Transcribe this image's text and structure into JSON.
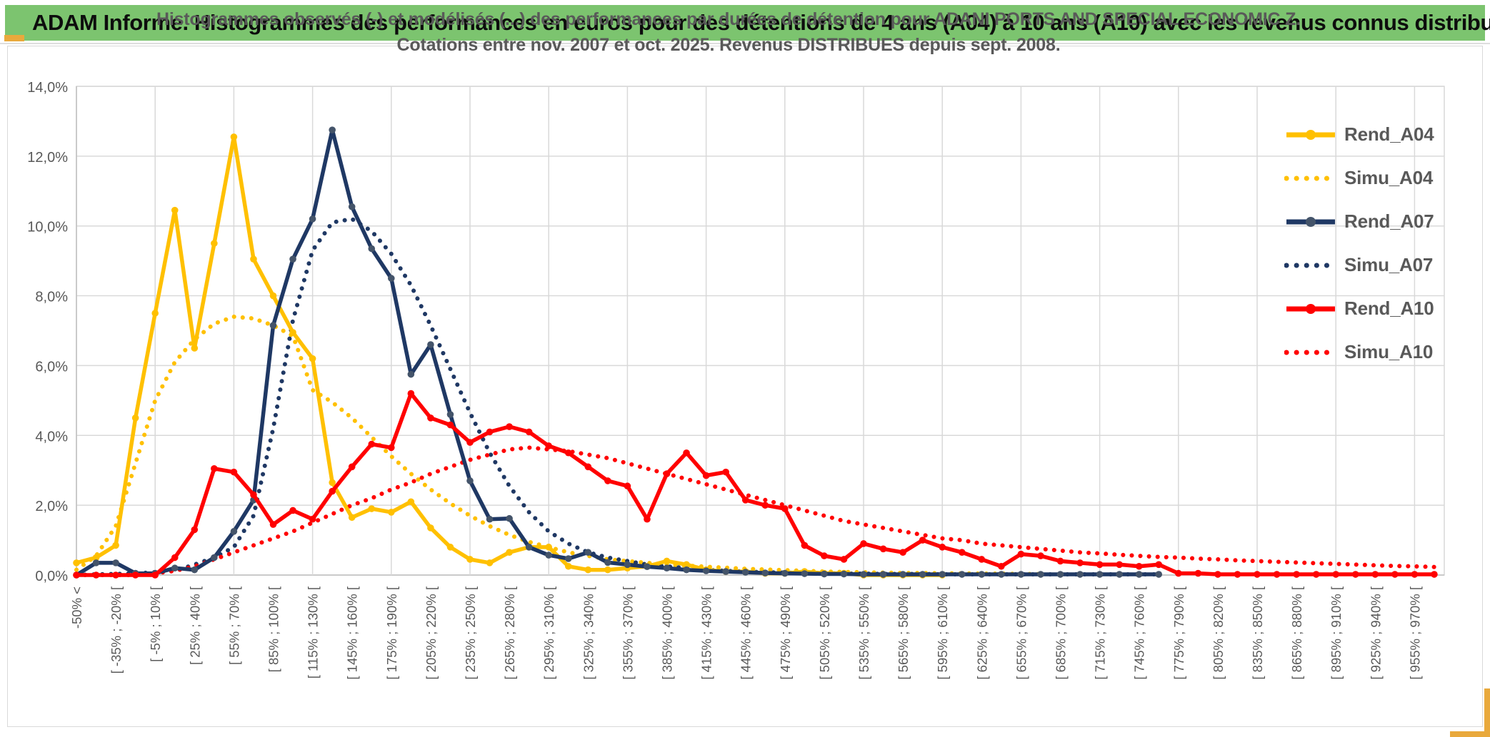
{
  "page": {
    "header_title": "ADAM Informe. Histogrammes des performances en euros pour des détentions de 4 ans (A04) à 10 ans (A10) avec les revenus connus distribués",
    "header_bg": "#7cc46f",
    "accent_gold": "#e9a93c",
    "border_gray": "#d9d9d9"
  },
  "chart": {
    "title_line1": "Histogrammes observés (-) et modélisés (...) des performances par durées de détention pour ADANI PORTS AND SPECIAL ECONOMIC Z.",
    "title_line2": "Cotations entre nov. 2007 et oct. 2025. Revenus DISTRIBUES depuis sept. 2008."
  },
  "chart_data": {
    "type": "line",
    "title": "Histogrammes observés (-) et modélisés (...) des performances par durées de détention pour ADANI PORTS AND SPECIAL ECONOMIC Z. Cotations entre nov. 2007 et oct. 2025. Revenus DISTRIBUES depuis sept. 2008.",
    "xlabel": "",
    "ylabel": "",
    "ylim": [
      0,
      14
    ],
    "y_tick_step_pct": 2,
    "y_tick_labels": [
      "0,0%",
      "2,0%",
      "4,0%",
      "6,0%",
      "8,0%",
      "10,0%",
      "12,0%",
      "14,0%"
    ],
    "grid": true,
    "legend_position": "right",
    "bin_width_pct": 15,
    "n_bins": 70,
    "x_labels_every": 2,
    "tick_labels": [
      "-50% <",
      "[ -35% ; -20% [",
      "[ -5% ; 10% [",
      "[ 25% ; 40% [",
      "[ 55% ; 70% [",
      "[ 85% ; 100% [",
      "[ 115% ; 130% [",
      "[ 145% ; 160% [",
      "[ 175% ; 190% [",
      "[ 205% ; 220% [",
      "[ 235% ; 250% [",
      "[ 265% ; 280% [",
      "[ 295% ; 310% [",
      "[ 325% ; 340% [",
      "[ 355% ; 370% [",
      "[ 385% ; 400% [",
      "[ 415% ; 430% [",
      "[ 445% ; 460% [",
      "[ 475% ; 490% [",
      "[ 505% ; 520% [",
      "[ 535% ; 550% [",
      "[ 565% ; 580% [",
      "[ 595% ; 610% [",
      "[ 625% ; 640% [",
      "[ 655% ; 670% [",
      "[ 685% ; 700% [",
      "[ 715% ; 730% [",
      "[ 745% ; 760% [",
      "[ 775% ; 790% [",
      "[ 805% ; 820% [",
      "[ 835% ; 850% [",
      "[ 865% ; 880% [",
      "[ 895% ; 910% [",
      "[ 925% ; 940% [",
      "[ 955% ; 970% ["
    ],
    "series": [
      {
        "name": "Simu_A04",
        "style": "dotted",
        "color": "#FFC000",
        "marker_color": "#FFC000",
        "values": [
          0.15,
          0.55,
          1.4,
          3.2,
          5.0,
          6.1,
          6.75,
          7.2,
          7.4,
          7.35,
          7.15,
          6.85,
          5.3,
          4.95,
          4.5,
          3.95,
          3.4,
          2.9,
          2.45,
          2.05,
          1.7,
          1.4,
          1.15,
          0.95,
          0.8,
          0.65,
          0.55,
          0.45,
          0.4,
          0.35,
          0.3,
          0.27,
          0.24,
          0.21,
          0.18,
          0.16,
          0.14,
          0.12,
          0.1,
          0.09,
          0.08,
          0.07,
          0.06,
          0.06,
          0.05,
          0.05,
          0.04,
          0.04,
          0.03,
          0.03,
          null,
          null,
          null,
          null,
          null,
          null,
          null,
          null,
          null,
          null,
          null,
          null,
          null,
          null,
          null,
          null,
          null,
          null,
          null,
          null
        ]
      },
      {
        "name": "Simu_A07",
        "style": "dotted",
        "color": "#1F3864",
        "marker_color": "#1F3864",
        "values": [
          0,
          0.02,
          0.03,
          0.05,
          0.08,
          0.12,
          0.3,
          0.5,
          0.8,
          1.7,
          4.2,
          7.3,
          9.3,
          10.1,
          10.2,
          9.85,
          9.2,
          8.3,
          7.15,
          5.9,
          4.65,
          3.5,
          2.55,
          1.8,
          1.25,
          0.9,
          0.65,
          0.5,
          0.4,
          0.3,
          0.25,
          0.2,
          0.15,
          0.12,
          0.1,
          0.08,
          0.07,
          0.06,
          0.05,
          0.04,
          0.04,
          0.03,
          0.03,
          0.03,
          0.02,
          0.02,
          0.02,
          0.02,
          0.02,
          0.02,
          0.02,
          0.02,
          0.02,
          0.02,
          0.02,
          0.02,
          null,
          null,
          null,
          null,
          null,
          null,
          null,
          null,
          null,
          null,
          null,
          null,
          null,
          null
        ]
      },
      {
        "name": "Simu_A10",
        "style": "dotted",
        "color": "#FF0000",
        "marker_color": "#FF0000",
        "values": [
          0,
          0,
          0,
          0,
          0.05,
          0.12,
          0.25,
          0.45,
          0.65,
          0.85,
          1.05,
          1.25,
          1.5,
          1.75,
          2.0,
          2.2,
          2.45,
          2.65,
          2.9,
          3.1,
          3.3,
          3.45,
          3.6,
          3.65,
          3.6,
          3.55,
          3.45,
          3.35,
          3.2,
          3.05,
          2.9,
          2.75,
          2.6,
          2.45,
          2.3,
          2.15,
          2.0,
          1.85,
          1.7,
          1.55,
          1.45,
          1.35,
          1.25,
          1.15,
          1.05,
          1.0,
          0.9,
          0.85,
          0.8,
          0.75,
          0.7,
          0.65,
          0.62,
          0.58,
          0.55,
          0.52,
          0.5,
          0.47,
          0.45,
          0.42,
          0.4,
          0.38,
          0.36,
          0.34,
          0.32,
          0.3,
          0.28,
          0.26,
          0.25,
          0.23
        ]
      },
      {
        "name": "Rend_A04",
        "style": "solid",
        "color": "#FFC000",
        "marker_color": "#FFC000",
        "values": [
          0.35,
          0.5,
          0.85,
          4.5,
          7.5,
          10.45,
          6.5,
          9.5,
          12.55,
          9.05,
          8,
          6.95,
          6.2,
          2.65,
          1.65,
          1.9,
          1.8,
          2.1,
          1.35,
          0.8,
          0.45,
          0.35,
          0.65,
          0.8,
          0.8,
          0.25,
          0.15,
          0.15,
          0.2,
          0.25,
          0.4,
          0.3,
          0.15,
          0.1,
          0.1,
          0.05,
          0.05,
          0.1,
          0.05,
          0.05,
          0,
          0,
          0,
          0,
          0,
          null,
          null,
          null,
          null,
          null,
          null,
          null,
          null,
          null,
          null,
          null,
          null,
          null,
          null,
          null,
          null,
          null,
          null,
          null,
          null,
          null,
          null,
          null,
          null,
          null
        ]
      },
      {
        "name": "Rend_A07",
        "style": "solid",
        "color": "#1F3864",
        "marker_color": "#44546A",
        "values": [
          0,
          0.35,
          0.35,
          0.05,
          0.05,
          0.2,
          0.15,
          0.5,
          1.25,
          2.15,
          7.15,
          9.05,
          10.2,
          12.75,
          10.55,
          9.35,
          8.5,
          5.75,
          6.6,
          4.6,
          2.7,
          1.6,
          1.62,
          0.8,
          0.57,
          0.47,
          0.65,
          0.36,
          0.3,
          0.24,
          0.2,
          0.15,
          0.12,
          0.1,
          0.08,
          0.06,
          0.05,
          0.04,
          0.03,
          0.03,
          0.02,
          0.02,
          0.02,
          0.02,
          0.02,
          0.02,
          0.02,
          0.02,
          0.02,
          0.02,
          0.02,
          0.02,
          0.02,
          0.02,
          0.02,
          0.02,
          null,
          null,
          null,
          null,
          null,
          null,
          null,
          null,
          null,
          null,
          null,
          null,
          null,
          null
        ]
      },
      {
        "name": "Rend_A10",
        "style": "solid",
        "color": "#FF0000",
        "marker_color": "#FF0000",
        "values": [
          0,
          0,
          0,
          0,
          0,
          0.5,
          1.3,
          3.05,
          2.95,
          2.3,
          1.45,
          1.85,
          1.6,
          2.4,
          3.1,
          3.75,
          3.65,
          5.2,
          4.5,
          4.3,
          3.8,
          4.1,
          4.25,
          4.1,
          3.7,
          3.5,
          3.1,
          2.7,
          2.55,
          1.6,
          2.9,
          3.5,
          2.85,
          2.95,
          2.15,
          2.0,
          1.9,
          0.85,
          0.55,
          0.45,
          0.9,
          0.75,
          0.65,
          1.0,
          0.8,
          0.65,
          0.45,
          0.25,
          0.6,
          0.55,
          0.4,
          0.35,
          0.3,
          0.3,
          0.25,
          0.3,
          0.05,
          0.05,
          0.02,
          0.02,
          0.02,
          0.02,
          0.02,
          0.02,
          0.02,
          0.02,
          0.02,
          0.02,
          0.02,
          0.02
        ]
      }
    ],
    "legend_order": [
      "Rend_A04",
      "Simu_A04",
      "Rend_A07",
      "Simu_A07",
      "Rend_A10",
      "Simu_A10"
    ]
  }
}
